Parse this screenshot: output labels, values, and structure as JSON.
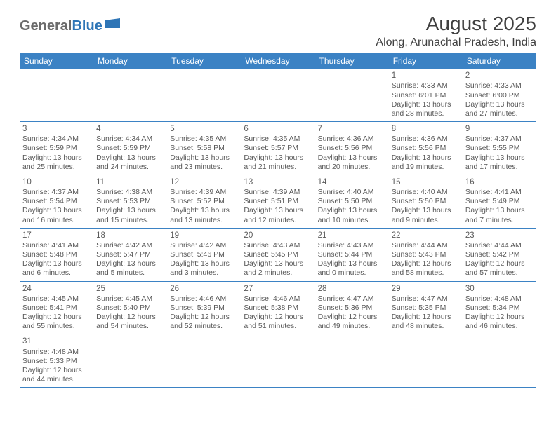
{
  "logo": {
    "text_general": "General",
    "text_blue": "Blue",
    "shape_color": "#2e75b6"
  },
  "header": {
    "title": "August 2025",
    "location": "Along, Arunachal Pradesh, India"
  },
  "colors": {
    "header_bg": "#3b82c4",
    "header_text": "#ffffff",
    "border": "#3b82c4",
    "body_text": "#595959"
  },
  "day_names": [
    "Sunday",
    "Monday",
    "Tuesday",
    "Wednesday",
    "Thursday",
    "Friday",
    "Saturday"
  ],
  "weeks": [
    [
      null,
      null,
      null,
      null,
      null,
      {
        "n": "1",
        "sr": "Sunrise: 4:33 AM",
        "ss": "Sunset: 6:01 PM",
        "dl": "Daylight: 13 hours and 28 minutes."
      },
      {
        "n": "2",
        "sr": "Sunrise: 4:33 AM",
        "ss": "Sunset: 6:00 PM",
        "dl": "Daylight: 13 hours and 27 minutes."
      }
    ],
    [
      {
        "n": "3",
        "sr": "Sunrise: 4:34 AM",
        "ss": "Sunset: 5:59 PM",
        "dl": "Daylight: 13 hours and 25 minutes."
      },
      {
        "n": "4",
        "sr": "Sunrise: 4:34 AM",
        "ss": "Sunset: 5:59 PM",
        "dl": "Daylight: 13 hours and 24 minutes."
      },
      {
        "n": "5",
        "sr": "Sunrise: 4:35 AM",
        "ss": "Sunset: 5:58 PM",
        "dl": "Daylight: 13 hours and 23 minutes."
      },
      {
        "n": "6",
        "sr": "Sunrise: 4:35 AM",
        "ss": "Sunset: 5:57 PM",
        "dl": "Daylight: 13 hours and 21 minutes."
      },
      {
        "n": "7",
        "sr": "Sunrise: 4:36 AM",
        "ss": "Sunset: 5:56 PM",
        "dl": "Daylight: 13 hours and 20 minutes."
      },
      {
        "n": "8",
        "sr": "Sunrise: 4:36 AM",
        "ss": "Sunset: 5:56 PM",
        "dl": "Daylight: 13 hours and 19 minutes."
      },
      {
        "n": "9",
        "sr": "Sunrise: 4:37 AM",
        "ss": "Sunset: 5:55 PM",
        "dl": "Daylight: 13 hours and 17 minutes."
      }
    ],
    [
      {
        "n": "10",
        "sr": "Sunrise: 4:37 AM",
        "ss": "Sunset: 5:54 PM",
        "dl": "Daylight: 13 hours and 16 minutes."
      },
      {
        "n": "11",
        "sr": "Sunrise: 4:38 AM",
        "ss": "Sunset: 5:53 PM",
        "dl": "Daylight: 13 hours and 15 minutes."
      },
      {
        "n": "12",
        "sr": "Sunrise: 4:39 AM",
        "ss": "Sunset: 5:52 PM",
        "dl": "Daylight: 13 hours and 13 minutes."
      },
      {
        "n": "13",
        "sr": "Sunrise: 4:39 AM",
        "ss": "Sunset: 5:51 PM",
        "dl": "Daylight: 13 hours and 12 minutes."
      },
      {
        "n": "14",
        "sr": "Sunrise: 4:40 AM",
        "ss": "Sunset: 5:50 PM",
        "dl": "Daylight: 13 hours and 10 minutes."
      },
      {
        "n": "15",
        "sr": "Sunrise: 4:40 AM",
        "ss": "Sunset: 5:50 PM",
        "dl": "Daylight: 13 hours and 9 minutes."
      },
      {
        "n": "16",
        "sr": "Sunrise: 4:41 AM",
        "ss": "Sunset: 5:49 PM",
        "dl": "Daylight: 13 hours and 7 minutes."
      }
    ],
    [
      {
        "n": "17",
        "sr": "Sunrise: 4:41 AM",
        "ss": "Sunset: 5:48 PM",
        "dl": "Daylight: 13 hours and 6 minutes."
      },
      {
        "n": "18",
        "sr": "Sunrise: 4:42 AM",
        "ss": "Sunset: 5:47 PM",
        "dl": "Daylight: 13 hours and 5 minutes."
      },
      {
        "n": "19",
        "sr": "Sunrise: 4:42 AM",
        "ss": "Sunset: 5:46 PM",
        "dl": "Daylight: 13 hours and 3 minutes."
      },
      {
        "n": "20",
        "sr": "Sunrise: 4:43 AM",
        "ss": "Sunset: 5:45 PM",
        "dl": "Daylight: 13 hours and 2 minutes."
      },
      {
        "n": "21",
        "sr": "Sunrise: 4:43 AM",
        "ss": "Sunset: 5:44 PM",
        "dl": "Daylight: 13 hours and 0 minutes."
      },
      {
        "n": "22",
        "sr": "Sunrise: 4:44 AM",
        "ss": "Sunset: 5:43 PM",
        "dl": "Daylight: 12 hours and 58 minutes."
      },
      {
        "n": "23",
        "sr": "Sunrise: 4:44 AM",
        "ss": "Sunset: 5:42 PM",
        "dl": "Daylight: 12 hours and 57 minutes."
      }
    ],
    [
      {
        "n": "24",
        "sr": "Sunrise: 4:45 AM",
        "ss": "Sunset: 5:41 PM",
        "dl": "Daylight: 12 hours and 55 minutes."
      },
      {
        "n": "25",
        "sr": "Sunrise: 4:45 AM",
        "ss": "Sunset: 5:40 PM",
        "dl": "Daylight: 12 hours and 54 minutes."
      },
      {
        "n": "26",
        "sr": "Sunrise: 4:46 AM",
        "ss": "Sunset: 5:39 PM",
        "dl": "Daylight: 12 hours and 52 minutes."
      },
      {
        "n": "27",
        "sr": "Sunrise: 4:46 AM",
        "ss": "Sunset: 5:38 PM",
        "dl": "Daylight: 12 hours and 51 minutes."
      },
      {
        "n": "28",
        "sr": "Sunrise: 4:47 AM",
        "ss": "Sunset: 5:36 PM",
        "dl": "Daylight: 12 hours and 49 minutes."
      },
      {
        "n": "29",
        "sr": "Sunrise: 4:47 AM",
        "ss": "Sunset: 5:35 PM",
        "dl": "Daylight: 12 hours and 48 minutes."
      },
      {
        "n": "30",
        "sr": "Sunrise: 4:48 AM",
        "ss": "Sunset: 5:34 PM",
        "dl": "Daylight: 12 hours and 46 minutes."
      }
    ],
    [
      {
        "n": "31",
        "sr": "Sunrise: 4:48 AM",
        "ss": "Sunset: 5:33 PM",
        "dl": "Daylight: 12 hours and 44 minutes."
      },
      null,
      null,
      null,
      null,
      null,
      null
    ]
  ]
}
